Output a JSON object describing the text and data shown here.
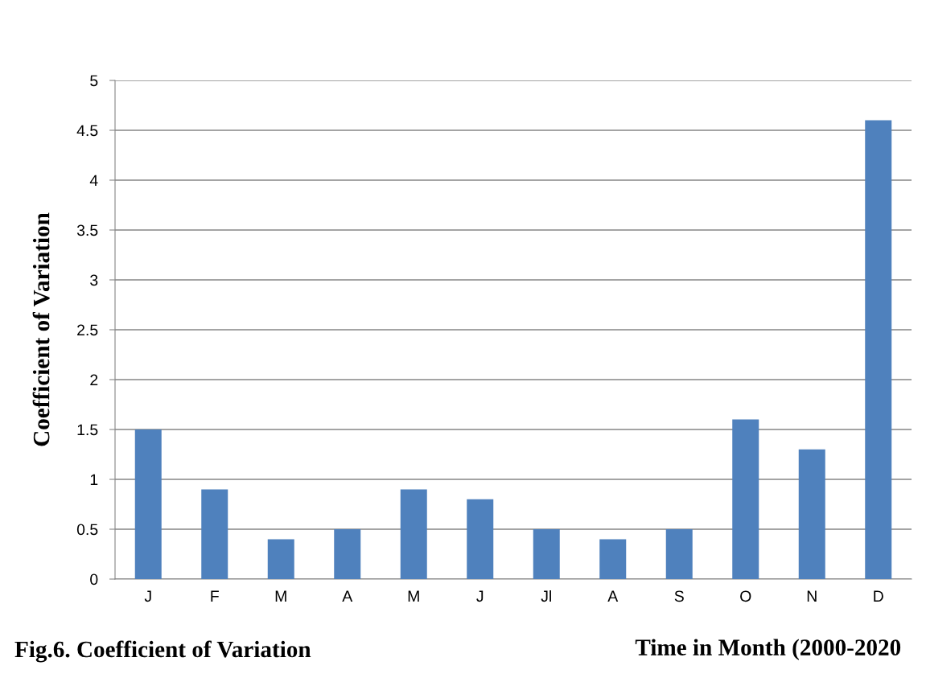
{
  "chart_data": {
    "type": "bar",
    "title": "Fig.6. Coefficient of Variation",
    "xlabel": "Time in Month (2000-2020",
    "ylabel": "Coefficient of Variation",
    "categories": [
      "J",
      "F",
      "M",
      "A",
      "M",
      "J",
      "Jl",
      "A",
      "S",
      "O",
      "N",
      "D"
    ],
    "values": [
      1.5,
      0.9,
      0.4,
      0.5,
      0.9,
      0.8,
      0.5,
      0.4,
      0.5,
      1.6,
      1.3,
      4.6
    ],
    "color": "#4f81bd",
    "ylim": [
      0,
      5
    ],
    "yticks": [
      0,
      0.5,
      1,
      1.5,
      2,
      2.5,
      3,
      3.5,
      4,
      4.5,
      5
    ],
    "grid": "y"
  }
}
